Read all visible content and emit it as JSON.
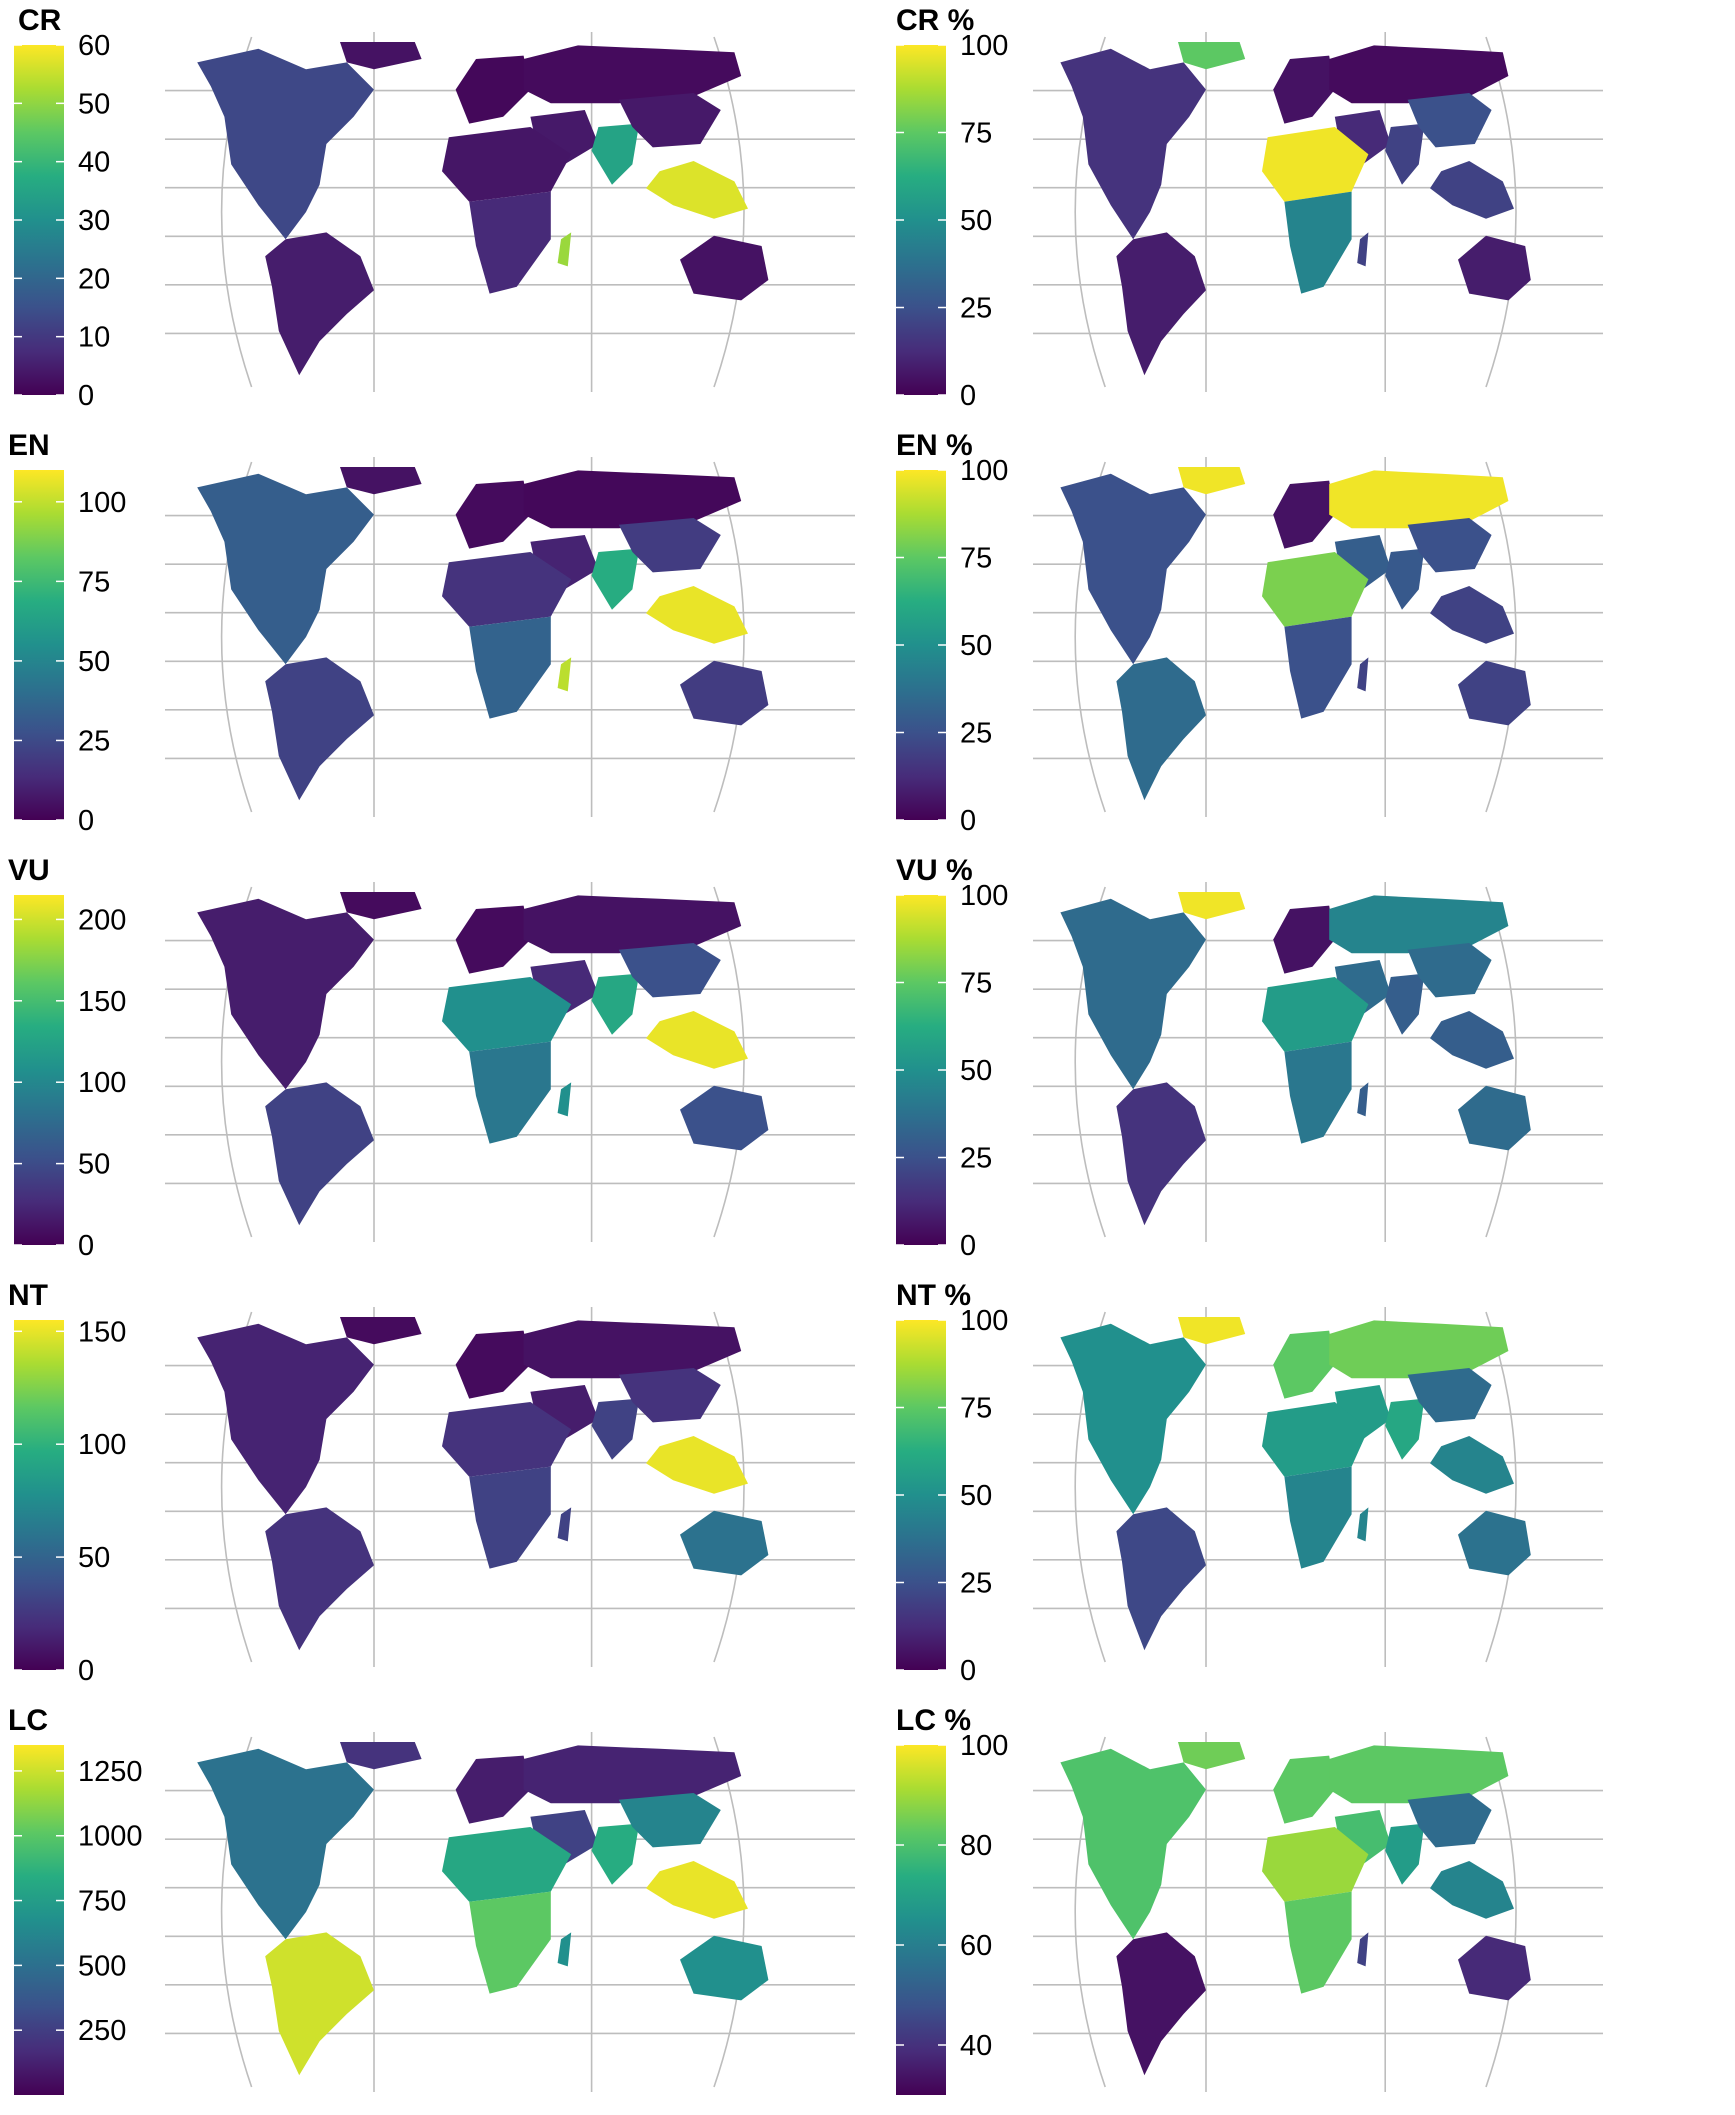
{
  "colors": {
    "viridis": [
      "#440154",
      "#472c7a",
      "#3b518b",
      "#2c718e",
      "#21908d",
      "#27ad81",
      "#5cc863",
      "#aadc32",
      "#fde725"
    ],
    "graticule": "#bdbdbd"
  },
  "panels": [
    {
      "id": "cr",
      "title": "CR",
      "scale_min": 0,
      "scale_max": 60,
      "ticks": [
        "0",
        "10",
        "20",
        "30",
        "40",
        "50",
        "60"
      ],
      "tick_values": [
        0,
        10,
        20,
        30,
        40,
        50,
        60
      ],
      "regions": {
        "na": 0.22,
        "greenland": 0.05,
        "sa": 0.08,
        "eur": 0.02,
        "rus": 0.03,
        "mideast": 0.07,
        "nafrica": 0.06,
        "safrica": 0.12,
        "india": 0.58,
        "china": 0.07,
        "seasia": 0.95,
        "aus": 0.05,
        "madag": 0.85
      }
    },
    {
      "id": "crp",
      "title": "CR %",
      "scale_min": 0,
      "scale_max": 100,
      "ticks": [
        "0",
        "25",
        "50",
        "75",
        "100"
      ],
      "tick_values": [
        0,
        25,
        50,
        75,
        100
      ],
      "regions": {
        "na": 0.15,
        "greenland": 0.75,
        "sa": 0.08,
        "eur": 0.05,
        "rus": 0.03,
        "mideast": 0.12,
        "nafrica": 0.98,
        "safrica": 0.45,
        "india": 0.2,
        "china": 0.25,
        "seasia": 0.2,
        "aus": 0.08,
        "madag": 0.2
      }
    },
    {
      "id": "en",
      "title": "EN",
      "scale_min": 0,
      "scale_max": 110,
      "ticks": [
        "0",
        "25",
        "50",
        "75",
        "100"
      ],
      "tick_values": [
        0,
        25,
        50,
        75,
        100
      ],
      "regions": {
        "na": 0.3,
        "greenland": 0.05,
        "sa": 0.2,
        "eur": 0.03,
        "rus": 0.02,
        "mideast": 0.1,
        "nafrica": 0.15,
        "safrica": 0.32,
        "india": 0.62,
        "china": 0.18,
        "seasia": 0.97,
        "aus": 0.18,
        "madag": 0.9
      }
    },
    {
      "id": "enp",
      "title": "EN %",
      "scale_min": 0,
      "scale_max": 100,
      "ticks": [
        "0",
        "25",
        "50",
        "75",
        "100"
      ],
      "tick_values": [
        0,
        25,
        50,
        75,
        100
      ],
      "regions": {
        "na": 0.25,
        "greenland": 0.98,
        "sa": 0.35,
        "eur": 0.05,
        "rus": 0.98,
        "mideast": 0.3,
        "nafrica": 0.8,
        "safrica": 0.25,
        "india": 0.28,
        "china": 0.25,
        "seasia": 0.2,
        "aus": 0.2,
        "madag": 0.2
      }
    },
    {
      "id": "vu",
      "title": "VU",
      "scale_min": 0,
      "scale_max": 215,
      "ticks": [
        "0",
        "50",
        "100",
        "150",
        "200"
      ],
      "tick_values": [
        0,
        50,
        100,
        150,
        200
      ],
      "regions": {
        "na": 0.08,
        "greenland": 0.03,
        "sa": 0.2,
        "eur": 0.03,
        "rus": 0.05,
        "mideast": 0.12,
        "nafrica": 0.5,
        "safrica": 0.4,
        "india": 0.6,
        "china": 0.25,
        "seasia": 0.97,
        "aus": 0.25,
        "madag": 0.5
      }
    },
    {
      "id": "vup",
      "title": "VU %",
      "scale_min": 0,
      "scale_max": 100,
      "ticks": [
        "0",
        "25",
        "50",
        "75",
        "100"
      ],
      "tick_values": [
        0,
        25,
        50,
        75,
        100
      ],
      "regions": {
        "na": 0.35,
        "greenland": 0.98,
        "sa": 0.15,
        "eur": 0.05,
        "rus": 0.45,
        "mideast": 0.35,
        "nafrica": 0.55,
        "safrica": 0.4,
        "india": 0.3,
        "china": 0.35,
        "seasia": 0.3,
        "aus": 0.35,
        "madag": 0.3
      }
    },
    {
      "id": "nt",
      "title": "NT",
      "scale_min": 0,
      "scale_max": 155,
      "ticks": [
        "0",
        "50",
        "100",
        "150"
      ],
      "tick_values": [
        0,
        50,
        100,
        150
      ],
      "regions": {
        "na": 0.1,
        "greenland": 0.03,
        "sa": 0.15,
        "eur": 0.03,
        "rus": 0.05,
        "mideast": 0.08,
        "nafrica": 0.15,
        "safrica": 0.2,
        "india": 0.2,
        "china": 0.15,
        "seasia": 0.97,
        "aus": 0.38,
        "madag": 0.2
      }
    },
    {
      "id": "ntp",
      "title": "NT %",
      "scale_min": 0,
      "scale_max": 100,
      "ticks": [
        "0",
        "25",
        "50",
        "75",
        "100"
      ],
      "tick_values": [
        0,
        25,
        50,
        75,
        100
      ],
      "regions": {
        "na": 0.5,
        "greenland": 0.98,
        "sa": 0.22,
        "eur": 0.75,
        "rus": 0.78,
        "mideast": 0.55,
        "nafrica": 0.55,
        "safrica": 0.45,
        "india": 0.6,
        "china": 0.35,
        "seasia": 0.45,
        "aus": 0.38,
        "madag": 0.45
      }
    },
    {
      "id": "lc",
      "title": "LC",
      "scale_min": 0,
      "scale_max": 1350,
      "ticks": [
        "250",
        "500",
        "750",
        "1000",
        "1250"
      ],
      "tick_values": [
        250,
        500,
        750,
        1000,
        1250
      ],
      "regions": {
        "na": 0.38,
        "greenland": 0.15,
        "sa": 0.93,
        "eur": 0.08,
        "rus": 0.1,
        "mideast": 0.2,
        "nafrica": 0.6,
        "safrica": 0.75,
        "india": 0.62,
        "china": 0.45,
        "seasia": 0.97,
        "aus": 0.5,
        "madag": 0.5
      }
    },
    {
      "id": "lcp",
      "title": "LC %",
      "scale_min": 30,
      "scale_max": 100,
      "ticks": [
        "40",
        "60",
        "80",
        "100"
      ],
      "tick_values": [
        40,
        60,
        80,
        100
      ],
      "regions": {
        "na": 0.72,
        "greenland": 0.78,
        "sa": 0.05,
        "eur": 0.75,
        "rus": 0.75,
        "mideast": 0.7,
        "nafrica": 0.85,
        "safrica": 0.75,
        "india": 0.55,
        "china": 0.35,
        "seasia": 0.45,
        "aus": 0.12,
        "madag": 0.2
      }
    }
  ]
}
